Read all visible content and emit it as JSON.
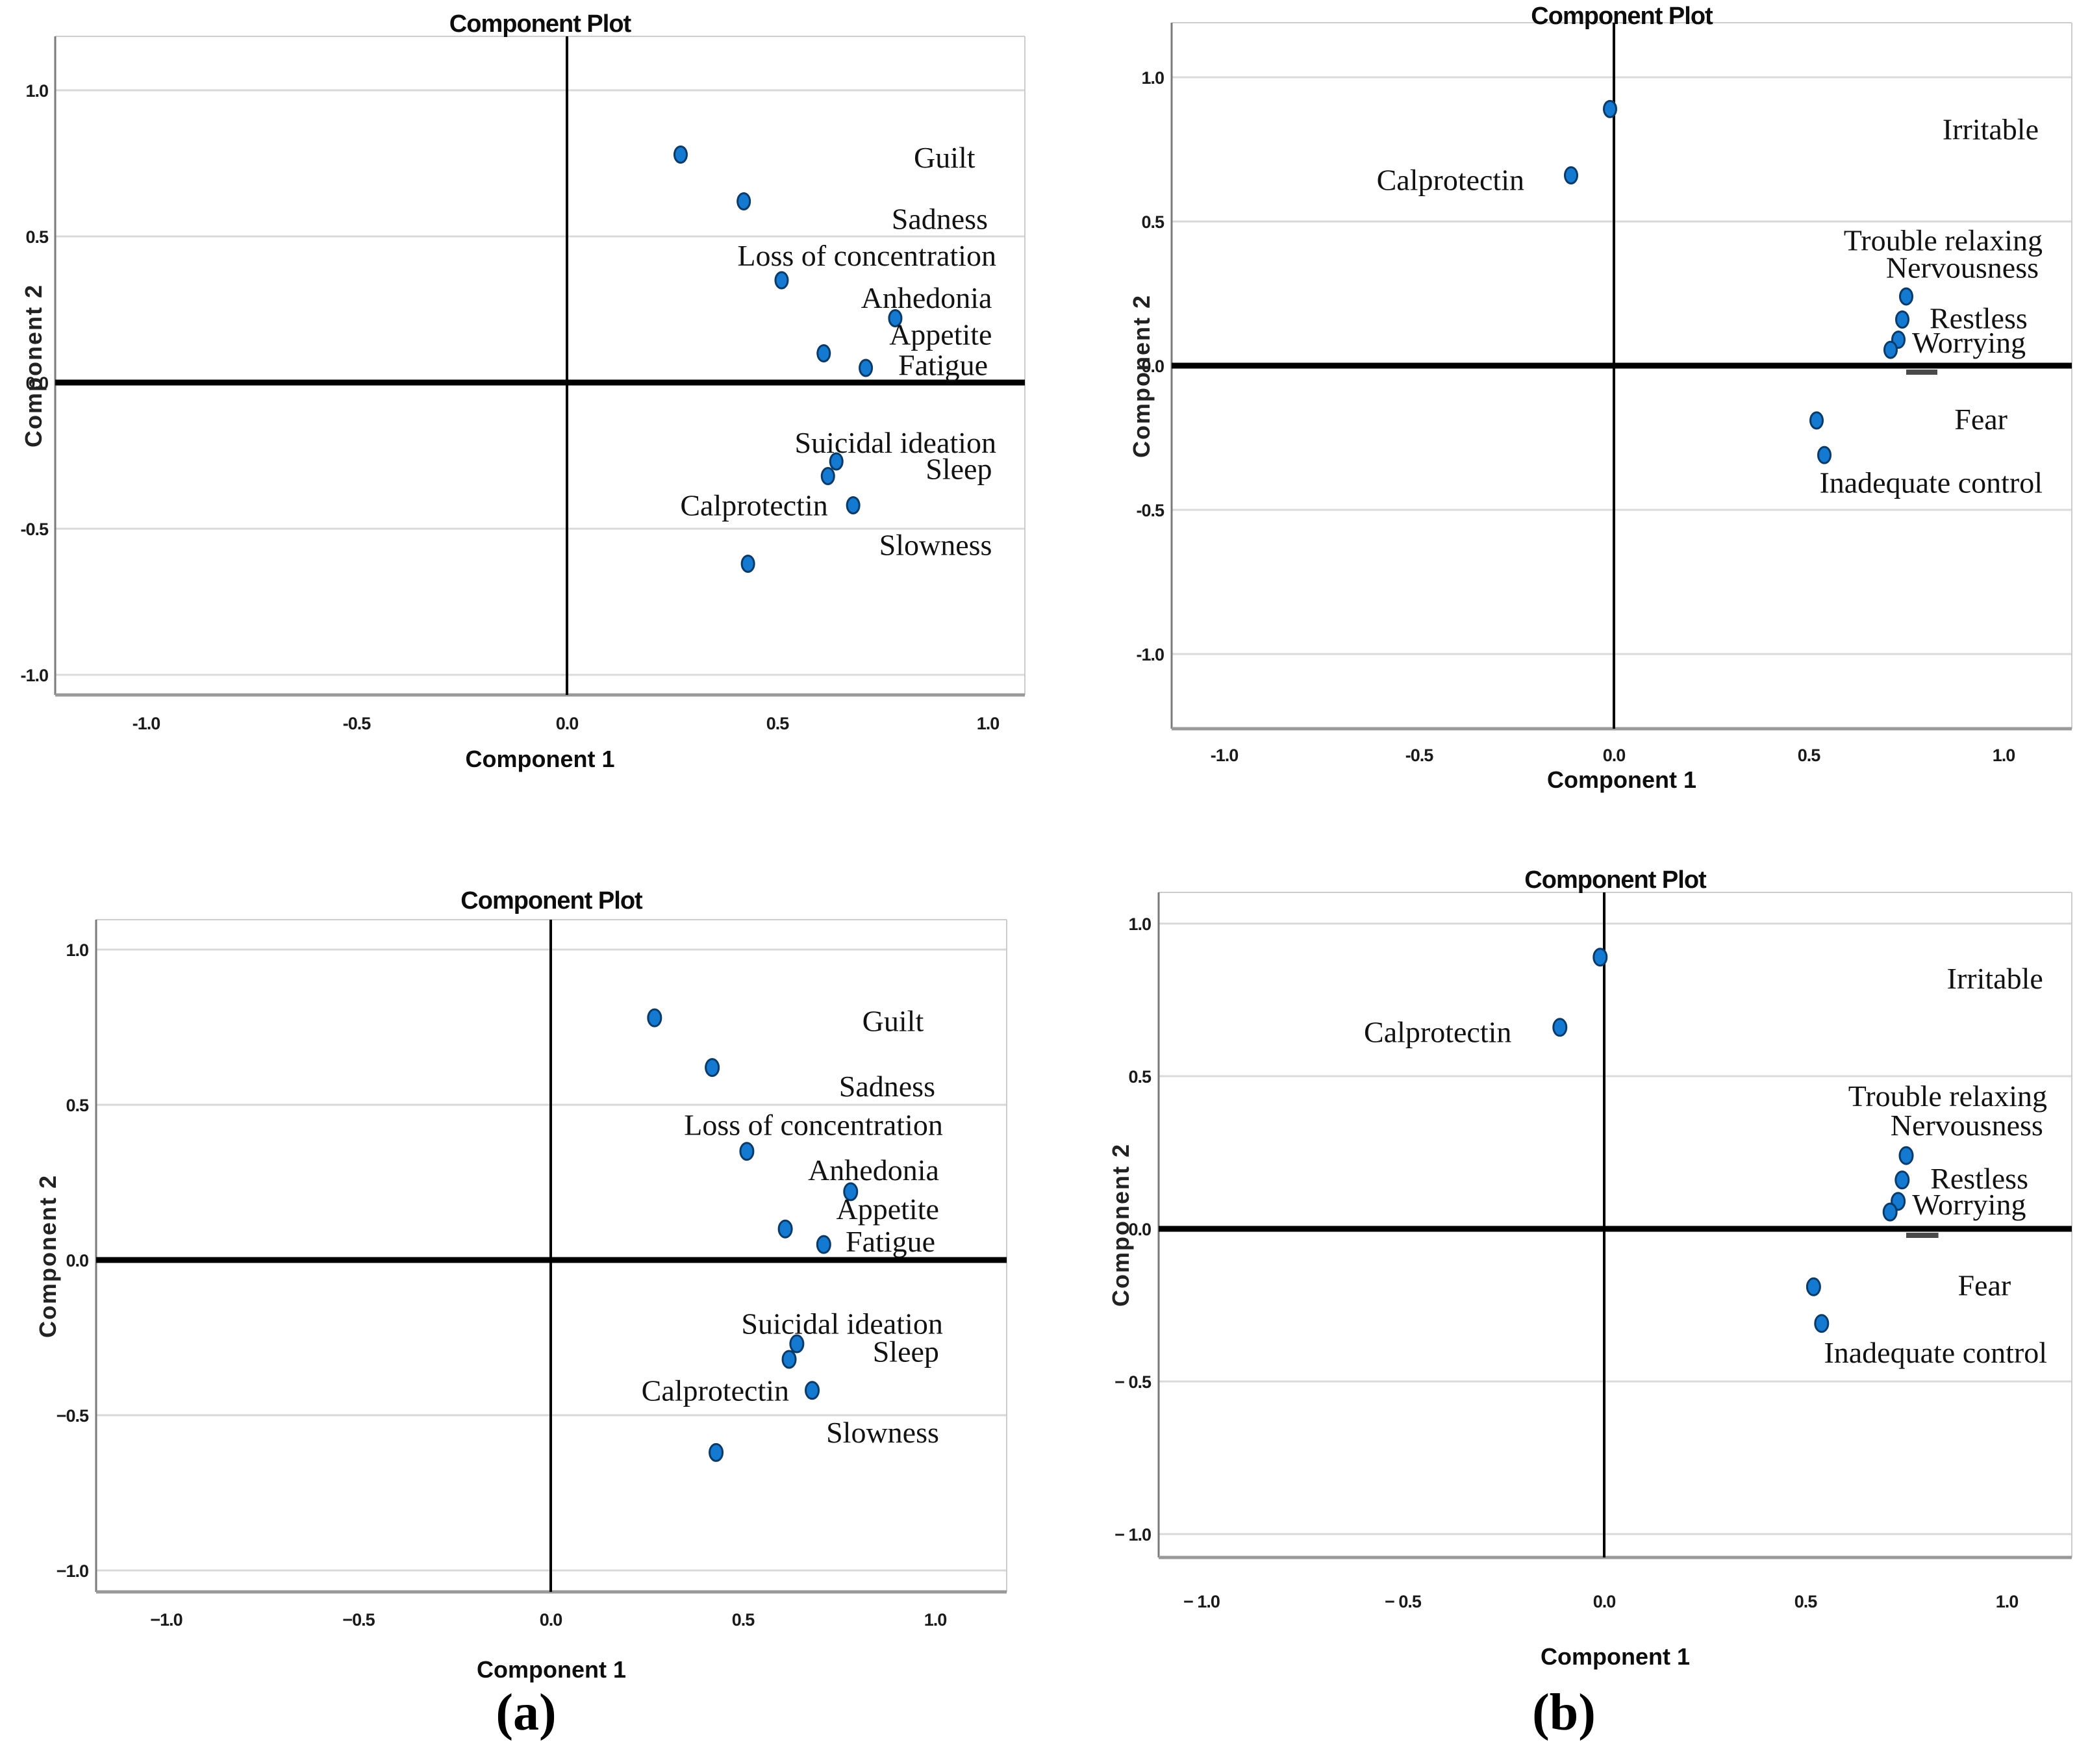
{
  "figure": {
    "captions": [
      {
        "id": "a",
        "text": "(a)"
      },
      {
        "id": "b",
        "text": "(b)"
      }
    ]
  },
  "colors": {
    "background": "#ffffff",
    "dot_fill": "#147ad1",
    "dot_stroke": "#0a3a68",
    "grid": "#d9d9d9",
    "zero_line": "#000000",
    "frame_light": "#cccccc",
    "frame_dark": "#7a7a7a",
    "frame_bottom": "#999999",
    "text": "#1a1a1a"
  },
  "chart_data": [
    {
      "id": "a",
      "type": "scatter",
      "title": "Component Plot",
      "xlabel": "Component 1",
      "ylabel": "Component 2",
      "xlim": [
        -1.2,
        1.1
      ],
      "ylim": [
        -1.1,
        1.2
      ],
      "grid": "horizontal",
      "legend": "none",
      "xticks": [
        -1.0,
        -0.5,
        0.0,
        0.5,
        1.0
      ],
      "yticks": [
        1.0,
        0.5,
        0.0,
        -0.5,
        -1.0
      ],
      "xtick_labels": {
        "top": [
          "-1.0",
          "-0.5",
          "0.0",
          "0.5",
          "1.0"
        ],
        "bottom": [
          "−1.0",
          "−0.5",
          "0.0",
          "0.5",
          "1.0"
        ]
      },
      "ytick_labels": {
        "top": [
          "1.0",
          "0.5",
          "0.0",
          "-0.5",
          "-1.0"
        ],
        "bottom": [
          "1.0",
          "0.5",
          "0.0",
          "−0.5",
          "−1.0"
        ]
      },
      "points": [
        {
          "label": "Guilt",
          "x": 0.27,
          "y": 0.78,
          "label_x": 0.97,
          "label_y": 0.77,
          "anchor": "end"
        },
        {
          "label": "Sadness",
          "x": 0.42,
          "y": 0.62,
          "label_x": 1.0,
          "label_y": 0.56,
          "anchor": "end"
        },
        {
          "label": "Loss of concentration",
          "x": 0.51,
          "y": 0.35,
          "label_x": 1.02,
          "label_y": 0.435,
          "anchor": "end"
        },
        {
          "label": "Anhedonia",
          "x": 0.78,
          "y": 0.22,
          "label_x": 1.01,
          "label_y": 0.29,
          "anchor": "end"
        },
        {
          "label": "Appetite",
          "x": 0.61,
          "y": 0.1,
          "label_x": 1.01,
          "label_y": 0.165,
          "anchor": "end"
        },
        {
          "label": "Fatigue",
          "x": 0.71,
          "y": 0.05,
          "label_x": 1.0,
          "label_y": 0.06,
          "anchor": "end"
        },
        {
          "label": "Suicidal ideation",
          "x": 0.64,
          "y": -0.27,
          "label_x": 1.02,
          "label_y": -0.205,
          "anchor": "end"
        },
        {
          "label": "Sleep",
          "x": 0.62,
          "y": -0.32,
          "label_x": 1.01,
          "label_y": -0.295,
          "anchor": "end"
        },
        {
          "label": "Calprotectin",
          "x": 0.68,
          "y": -0.42,
          "label_x": 0.62,
          "label_y": -0.42,
          "anchor": "end"
        },
        {
          "label": "Slowness",
          "x": 0.43,
          "y": -0.62,
          "label_x": 1.01,
          "label_y": -0.555,
          "anchor": "end"
        }
      ]
    },
    {
      "id": "b",
      "type": "scatter",
      "title": "Component Plot",
      "xlabel": "Component 1",
      "ylabel": "Component 2",
      "xlim": [
        -1.15,
        1.15
      ],
      "ylim": [
        -1.2,
        1.1
      ],
      "grid": "horizontal",
      "legend": "none",
      "xticks": [
        -1.0,
        -0.5,
        0.0,
        0.5,
        1.0
      ],
      "yticks": [
        1.0,
        0.5,
        0.0,
        -0.5,
        -1.0
      ],
      "xtick_labels": {
        "top": [
          "-1.0",
          "-0.5",
          "0.0",
          "0.5",
          "1.0"
        ],
        "bottom": [
          "− 1.0",
          "− 0.5",
          "0.0",
          "0.5",
          "1.0"
        ]
      },
      "ytick_labels": {
        "top": [
          "1.0",
          "0.5",
          "0.0",
          "-0.5",
          "-1.0"
        ],
        "bottom": [
          "1.0",
          "0.5",
          "0.0",
          "− 0.5",
          "− 1.0"
        ]
      },
      "zero_line_artifact": {
        "x1": 0.75,
        "x2": 0.83
      },
      "points": [
        {
          "label": "Irritable",
          "x": -0.01,
          "y": 0.89,
          "label_x": 1.09,
          "label_y": 0.82,
          "anchor": "end"
        },
        {
          "label": "Calprotectin",
          "x": -0.11,
          "y": 0.66,
          "label_x": -0.23,
          "label_y": 0.645,
          "anchor": "end"
        },
        {
          "label": "Trouble relaxing",
          "x": 0.75,
          "y": 0.24,
          "label_x": 1.1,
          "label_y": 0.435,
          "anchor": "end"
        },
        {
          "label": "Nervousness",
          "x": 0.74,
          "y": 0.16,
          "label_x": 1.09,
          "label_y": 0.34,
          "anchor": "end"
        },
        {
          "label": "Restless",
          "x": 0.73,
          "y": 0.09,
          "label_x": 0.81,
          "label_y": 0.165,
          "anchor": "start"
        },
        {
          "label": "Worrying",
          "x": 0.71,
          "y": 0.055,
          "label_x": 0.765,
          "label_y": 0.08,
          "anchor": "start"
        },
        {
          "label": "Fear",
          "x": 0.52,
          "y": -0.19,
          "label_x": 1.01,
          "label_y": -0.185,
          "anchor": "end"
        },
        {
          "label": "Inadequate control",
          "x": 0.54,
          "y": -0.31,
          "label_x": 1.1,
          "label_y": -0.405,
          "anchor": "end"
        }
      ]
    }
  ]
}
